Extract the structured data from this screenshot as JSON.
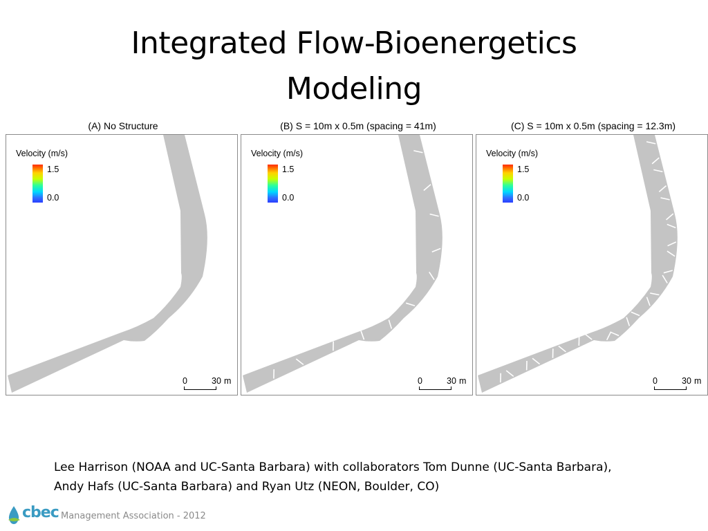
{
  "title": {
    "line1": "Integrated Flow-Bioenergetics",
    "line2": "Modeling"
  },
  "panels": [
    {
      "caption": "(A) No Structure",
      "legend_title": "Velocity (m/s)",
      "legend_max": "1.5",
      "legend_min": "0.0",
      "scale_start": "0",
      "scale_end": "30",
      "scale_unit": "m",
      "structures": 0
    },
    {
      "caption": "(B) S = 10m x 0.5m (spacing = 41m)",
      "legend_title": "Velocity (m/s)",
      "legend_max": "1.5",
      "legend_min": "0.0",
      "scale_start": "0",
      "scale_end": "30",
      "scale_unit": "m",
      "structures": 11
    },
    {
      "caption": "(C) S = 10m x 0.5m (spacing = 12.3m)",
      "legend_title": "Velocity (m/s)",
      "legend_max": "1.5",
      "legend_min": "0.0",
      "scale_start": "0",
      "scale_end": "30",
      "scale_unit": "m",
      "structures": 25
    }
  ],
  "colors": {
    "channel": "#c4c4c4",
    "structure": "#ffffff",
    "panel_border": "#8a8a8a",
    "brand": "#3a9bc2",
    "footer_text": "#8a8a8a"
  },
  "credits": {
    "line1": "Lee Harrison (NOAA and UC-Santa Barbara) with collaborators Tom Dunne (UC-Santa Barbara),",
    "line2": "Andy Hafs (UC-Santa Barbara) and Ryan Utz (NEON, Boulder, CO)"
  },
  "footer": {
    "brand": "cbec",
    "tagline": "Management Association - 2012",
    "logo_icon": "water-drop-icon"
  }
}
